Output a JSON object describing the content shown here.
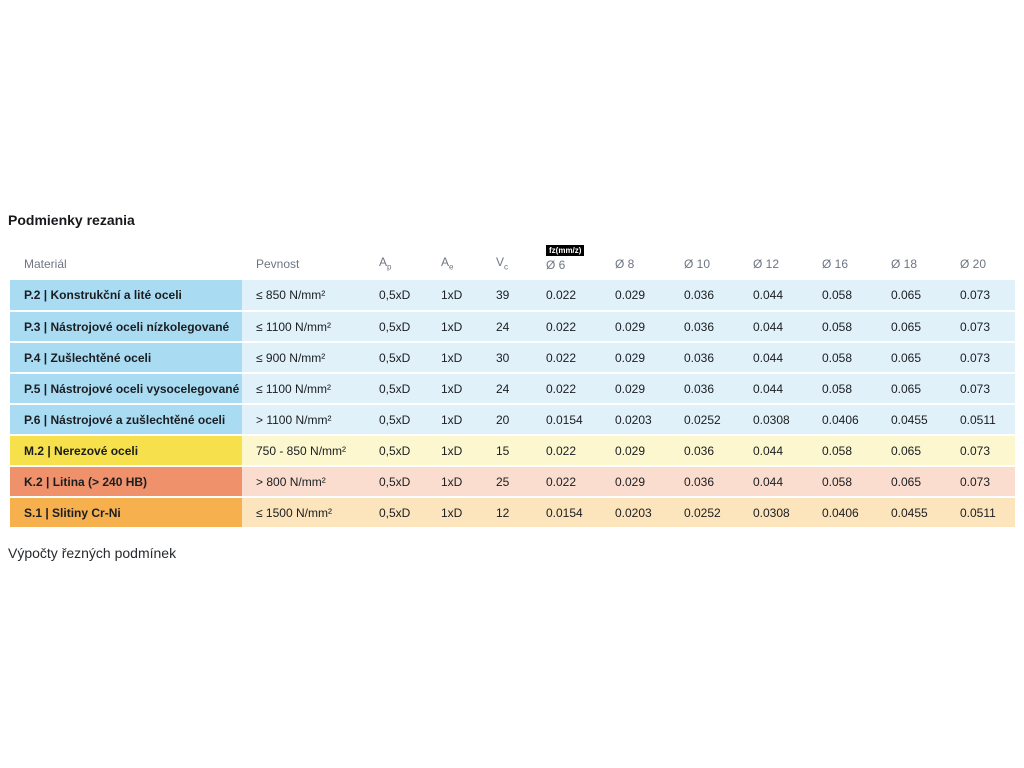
{
  "page": {
    "title": "Podmienky rezania",
    "footer_text": "Výpočty řezných podmínek"
  },
  "table": {
    "fz_badge": "fz(mm/z)",
    "headers": {
      "material": "Materiál",
      "pevnost": "Pevnost",
      "ap_main": "A",
      "ap_sub": "p",
      "ae_main": "A",
      "ae_sub": "e",
      "vc_main": "V",
      "vc_sub": "c",
      "diameters": [
        "Ø 6",
        "Ø 8",
        "Ø 10",
        "Ø 12",
        "Ø 16",
        "Ø 18",
        "Ø 20"
      ]
    },
    "rows": [
      {
        "material": "P.2 | Konstrukční a lité oceli",
        "pevnost": "≤ 850 N/mm²",
        "ap": "0,5xD",
        "ae": "1xD",
        "vc": "39",
        "theme": "blue",
        "values": [
          "0.022",
          "0.029",
          "0.036",
          "0.044",
          "0.058",
          "0.065",
          "0.073"
        ]
      },
      {
        "material": "P.3 | Nástrojové oceli nízkolegované",
        "pevnost": "≤ 1100 N/mm²",
        "ap": "0,5xD",
        "ae": "1xD",
        "vc": "24",
        "theme": "blue",
        "values": [
          "0.022",
          "0.029",
          "0.036",
          "0.044",
          "0.058",
          "0.065",
          "0.073"
        ]
      },
      {
        "material": "P.4 | Zušlechtěné oceli",
        "pevnost": "≤ 900 N/mm²",
        "ap": "0,5xD",
        "ae": "1xD",
        "vc": "30",
        "theme": "blue",
        "values": [
          "0.022",
          "0.029",
          "0.036",
          "0.044",
          "0.058",
          "0.065",
          "0.073"
        ]
      },
      {
        "material": "P.5 | Nástrojové oceli vysocelegované",
        "pevnost": "≤ 1100 N/mm²",
        "ap": "0,5xD",
        "ae": "1xD",
        "vc": "24",
        "theme": "blue",
        "values": [
          "0.022",
          "0.029",
          "0.036",
          "0.044",
          "0.058",
          "0.065",
          "0.073"
        ]
      },
      {
        "material": "P.6 | Nástrojové a zušlechtěné oceli",
        "pevnost": "> 1100 N/mm²",
        "ap": "0,5xD",
        "ae": "1xD",
        "vc": "20",
        "theme": "blue",
        "values": [
          "0.0154",
          "0.0203",
          "0.0252",
          "0.0308",
          "0.0406",
          "0.0455",
          "0.0511"
        ]
      },
      {
        "material": "M.2 | Nerezové oceli",
        "pevnost": "750 - 850 N/mm²",
        "ap": "0,5xD",
        "ae": "1xD",
        "vc": "15",
        "theme": "yellow",
        "values": [
          "0.022",
          "0.029",
          "0.036",
          "0.044",
          "0.058",
          "0.065",
          "0.073"
        ]
      },
      {
        "material": "K.2 | Litina (> 240 HB)",
        "pevnost": "> 800 N/mm²",
        "ap": "0,5xD",
        "ae": "1xD",
        "vc": "25",
        "theme": "red",
        "values": [
          "0.022",
          "0.029",
          "0.036",
          "0.044",
          "0.058",
          "0.065",
          "0.073"
        ]
      },
      {
        "material": "S.1 | Slitiny Cr-Ni",
        "pevnost": "≤ 1500 N/mm²",
        "ap": "0,5xD",
        "ae": "1xD",
        "vc": "12",
        "theme": "orange",
        "values": [
          "0.0154",
          "0.0203",
          "0.0252",
          "0.0308",
          "0.0406",
          "0.0455",
          "0.0511"
        ]
      }
    ]
  },
  "colors": {
    "blue_dark": "#A9DCF3",
    "blue_light": "#E0F1FA",
    "yellow_dark": "#F6E04B",
    "yellow_light": "#FCF7CE",
    "red_dark": "#EF916B",
    "red_light": "#FADDCE",
    "orange_dark": "#F6B04E",
    "orange_light": "#FCE4BC",
    "badge_bg": "#000000",
    "badge_text": "#FFFFFF",
    "header_text": "#6E7582",
    "body_text": "#1A1D21"
  }
}
